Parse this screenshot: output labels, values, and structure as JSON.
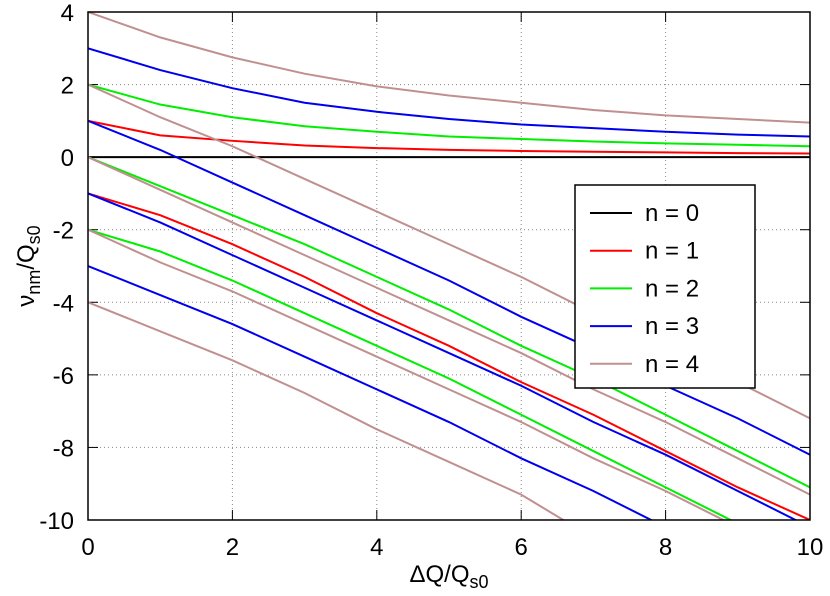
{
  "chart_data": {
    "type": "line",
    "xlabel": [
      "ΔQ/Q",
      "s0"
    ],
    "ylabel": [
      "ν",
      "nm",
      "/Q",
      "s0"
    ],
    "x": [
      0,
      1,
      2,
      3,
      4,
      5,
      6,
      7,
      8,
      9,
      10
    ],
    "xlim": [
      0,
      10
    ],
    "xticks": [
      0,
      2,
      4,
      6,
      8,
      10
    ],
    "ylim": [
      -10,
      4
    ],
    "yticks": [
      -10,
      -8,
      -6,
      -4,
      -2,
      0,
      2,
      4
    ],
    "grid": true,
    "legend": "right",
    "series": [
      {
        "name": "n = 0",
        "color": "#000000",
        "curves": [
          [
            0,
            0,
            0,
            0,
            0,
            0,
            0,
            0,
            0,
            0,
            0
          ]
        ]
      },
      {
        "name": "n = 1",
        "color": "#ff0000",
        "curves": [
          [
            1,
            0.6,
            0.45,
            0.32,
            0.25,
            0.2,
            0.17,
            0.15,
            0.13,
            0.11,
            0.1
          ],
          [
            -1,
            -1.6,
            -2.4,
            -3.3,
            -4.3,
            -5.2,
            -6.2,
            -7.1,
            -8.1,
            -9.1,
            -10
          ]
        ]
      },
      {
        "name": "n = 2",
        "color": "#00ee00",
        "curves": [
          [
            2,
            1.45,
            1.1,
            0.85,
            0.7,
            0.57,
            0.5,
            0.43,
            0.38,
            0.34,
            0.3
          ],
          [
            0,
            -0.8,
            -1.6,
            -2.4,
            -3.3,
            -4.2,
            -5.2,
            -6.1,
            -7.1,
            -8.1,
            -9.1
          ],
          [
            -2,
            -2.6,
            -3.4,
            -4.3,
            -5.2,
            -6.1,
            -7.1,
            -8.1,
            -9.1,
            -10.1,
            null
          ]
        ]
      },
      {
        "name": "n = 3",
        "color": "#0000ee",
        "curves": [
          [
            3,
            2.4,
            1.9,
            1.5,
            1.25,
            1.05,
            0.9,
            0.8,
            0.7,
            0.62,
            0.57
          ],
          [
            1,
            0.2,
            -0.7,
            -1.6,
            -2.5,
            -3.4,
            -4.4,
            -5.3,
            -6.3,
            -7.2,
            -8.2
          ],
          [
            -1,
            -1.8,
            -2.7,
            -3.6,
            -4.5,
            -5.4,
            -6.3,
            -7.3,
            -8.2,
            -9.2,
            -10.2
          ],
          [
            -3,
            -3.8,
            -4.6,
            -5.5,
            -6.4,
            -7.3,
            -8.3,
            -9.2,
            -10.2,
            null,
            null
          ]
        ]
      },
      {
        "name": "n = 4",
        "color": "#c09090",
        "curves": [
          [
            4,
            3.3,
            2.75,
            2.3,
            1.95,
            1.7,
            1.5,
            1.3,
            1.15,
            1.05,
            0.95
          ],
          [
            2,
            1.1,
            0.3,
            -0.6,
            -1.5,
            -2.4,
            -3.3,
            -4.3,
            -5.2,
            -6.2,
            -7.2
          ],
          [
            0,
            -0.9,
            -1.8,
            -2.7,
            -3.6,
            -4.5,
            -5.4,
            -6.4,
            -7.3,
            -8.3,
            -9.3
          ],
          [
            -2,
            -2.9,
            -3.7,
            -4.6,
            -5.5,
            -6.4,
            -7.3,
            -8.3,
            -9.2,
            -10.2,
            null
          ],
          [
            -4,
            -4.8,
            -5.6,
            -6.5,
            -7.5,
            -8.4,
            -9.3,
            -10.5,
            null,
            null,
            null
          ]
        ]
      }
    ]
  }
}
